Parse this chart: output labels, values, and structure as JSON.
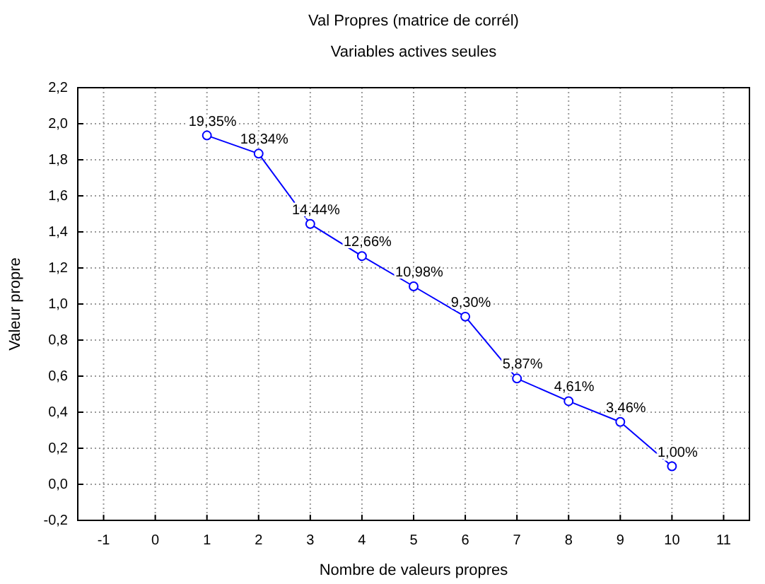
{
  "chart_data": {
    "type": "line",
    "title": "Val Propres (matrice de corrél)",
    "subtitle": "Variables actives seules",
    "xlabel": "Nombre de valeurs propres",
    "ylabel": "Valeur propre",
    "x": [
      1,
      2,
      3,
      4,
      5,
      6,
      7,
      8,
      9,
      10
    ],
    "series": [
      {
        "color": "#0000ff",
        "values": [
          1.935,
          1.834,
          1.444,
          1.266,
          1.098,
          0.93,
          0.587,
          0.461,
          0.346,
          0.1
        ]
      }
    ],
    "annotations": [
      {
        "text": "19,35%",
        "x": 1,
        "y": 1.935
      },
      {
        "text": "18,34%",
        "x": 2,
        "y": 1.834
      },
      {
        "text": "14,44%",
        "x": 3,
        "y": 1.444
      },
      {
        "text": "12,66%",
        "x": 4,
        "y": 1.266
      },
      {
        "text": "10,98%",
        "x": 5,
        "y": 1.098
      },
      {
        "text": "9,30%",
        "x": 6,
        "y": 0.93
      },
      {
        "text": "5,87%",
        "x": 7,
        "y": 0.587
      },
      {
        "text": "4,61%",
        "x": 8,
        "y": 0.461
      },
      {
        "text": "3,46%",
        "x": 9,
        "y": 0.346
      },
      {
        "text": "1,00%",
        "x": 10,
        "y": 0.1
      }
    ],
    "xlim": [
      -1.5,
      11.5
    ],
    "xticks": [
      -1,
      0,
      1,
      2,
      3,
      4,
      5,
      6,
      7,
      8,
      9,
      10,
      11
    ],
    "ylim": [
      -0.2,
      2.2
    ],
    "yticks": [
      {
        "value": -0.2,
        "label": "-0,2"
      },
      {
        "value": 0,
        "label": "0,0"
      },
      {
        "value": 0.2,
        "label": "0,2"
      },
      {
        "value": 0.4,
        "label": "0,4"
      },
      {
        "value": 0.6,
        "label": "0,6"
      },
      {
        "value": 0.8,
        "label": "0,8"
      },
      {
        "value": 1.0,
        "label": "1,0"
      },
      {
        "value": 1.2,
        "label": "1,2"
      },
      {
        "value": 1.4,
        "label": "1,4"
      },
      {
        "value": 1.6,
        "label": "1,6"
      },
      {
        "value": 1.8,
        "label": "1,8"
      },
      {
        "value": 2.0,
        "label": "2,0"
      },
      {
        "value": 2.2,
        "label": "2,2"
      }
    ],
    "grid": true,
    "marker": "circle",
    "line_style": "solid"
  }
}
